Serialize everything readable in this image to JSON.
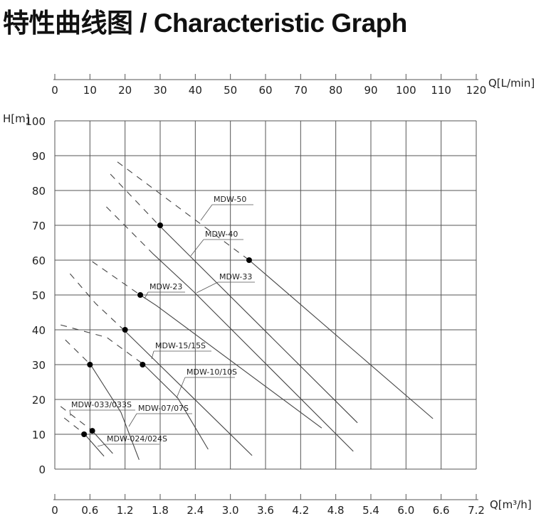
{
  "chart_data": {
    "type": "line",
    "title": "特性曲线图 / Characteristic Graph",
    "xlabel": "Q[m³/h]",
    "x2label": "Q[L/min]",
    "ylabel": "H[m]",
    "xlim": [
      0,
      7.2
    ],
    "x2lim": [
      0,
      120
    ],
    "ylim": [
      0,
      100
    ],
    "grid": true,
    "x_ticks": [
      "0",
      "0.6",
      "1.2",
      "1.8",
      "2.4",
      "3.0",
      "3.6",
      "4.2",
      "4.8",
      "5.4",
      "6.0",
      "6.6",
      "7.2"
    ],
    "x2_ticks": [
      "0",
      "10",
      "20",
      "30",
      "40",
      "50",
      "60",
      "70",
      "80",
      "90",
      "100",
      "110",
      "120"
    ],
    "y_ticks": [
      "0",
      "10",
      "20",
      "30",
      "40",
      "50",
      "60",
      "70",
      "80",
      "90",
      "100"
    ],
    "colors": {
      "grid": "#555555",
      "curve": "#444444",
      "point": "#000000"
    },
    "series": [
      {
        "name": "MDW-50",
        "dashed": [
          [
            1.07,
            88.2
          ],
          [
            3.32,
            60.0
          ]
        ],
        "solid": [
          [
            3.32,
            60.0
          ],
          [
            6.46,
            14.5
          ]
        ],
        "point": [
          3.32,
          60
        ]
      },
      {
        "name": "MDW-40",
        "dashed": [
          [
            0.95,
            84.7
          ],
          [
            1.78,
            70.0
          ]
        ],
        "solid": [
          [
            1.78,
            70.0
          ],
          [
            5.17,
            13.3
          ]
        ],
        "point": [
          1.8,
          70
        ]
      },
      {
        "name": "MDW-33",
        "dashed": [
          [
            0.88,
            75.3
          ],
          [
            1.68,
            61.8
          ]
        ],
        "solid": [
          [
            1.68,
            61.8
          ],
          [
            2.37,
            51.0
          ],
          [
            5.1,
            5.1
          ]
        ],
        "point": null
      },
      {
        "name": "MDW-23",
        "dashed": [
          [
            0.64,
            59.6
          ],
          [
            1.46,
            50.0
          ]
        ],
        "solid": [
          [
            1.46,
            50.0
          ],
          [
            1.74,
            46.9
          ],
          [
            4.56,
            11.8
          ]
        ],
        "point": [
          1.46,
          50
        ]
      },
      {
        "name": "MDW-15/15S",
        "dashed": [
          [
            0.26,
            56.1
          ],
          [
            0.7,
            47.5
          ],
          [
            1.19,
            39.8
          ]
        ],
        "solid": [
          [
            1.19,
            39.8
          ],
          [
            3.37,
            3.9
          ]
        ],
        "point": [
          1.2,
          40
        ]
      },
      {
        "name": "MDW-10/10S",
        "dashed": [
          [
            0.1,
            41.4
          ],
          [
            0.89,
            37.8
          ],
          [
            1.52,
            30.0
          ]
        ],
        "solid": [
          [
            1.52,
            30.0
          ],
          [
            2.1,
            20.4
          ],
          [
            2.62,
            5.7
          ]
        ],
        "point": [
          1.5,
          30
        ]
      },
      {
        "name": "MDW-07/07S",
        "dashed": [
          [
            0.18,
            37.1
          ],
          [
            0.61,
            30.0
          ]
        ],
        "solid": [
          [
            0.61,
            30.0
          ],
          [
            1.13,
            16.3
          ],
          [
            1.44,
            2.7
          ]
        ],
        "point": [
          0.6,
          30
        ]
      },
      {
        "name": "MDW-033/033S",
        "dashed": [
          [
            0.1,
            18.0
          ],
          [
            0.64,
            11.0
          ]
        ],
        "solid": [
          [
            0.64,
            11.0
          ],
          [
            0.99,
            4.5
          ]
        ],
        "point": [
          0.64,
          11
        ]
      },
      {
        "name": "MDW-024/024S",
        "dashed": [
          [
            0.16,
            14.7
          ],
          [
            0.5,
            10.2
          ]
        ],
        "solid": [
          [
            0.5,
            10.2
          ],
          [
            0.84,
            3.7
          ]
        ],
        "point": [
          0.5,
          10
        ]
      }
    ]
  }
}
